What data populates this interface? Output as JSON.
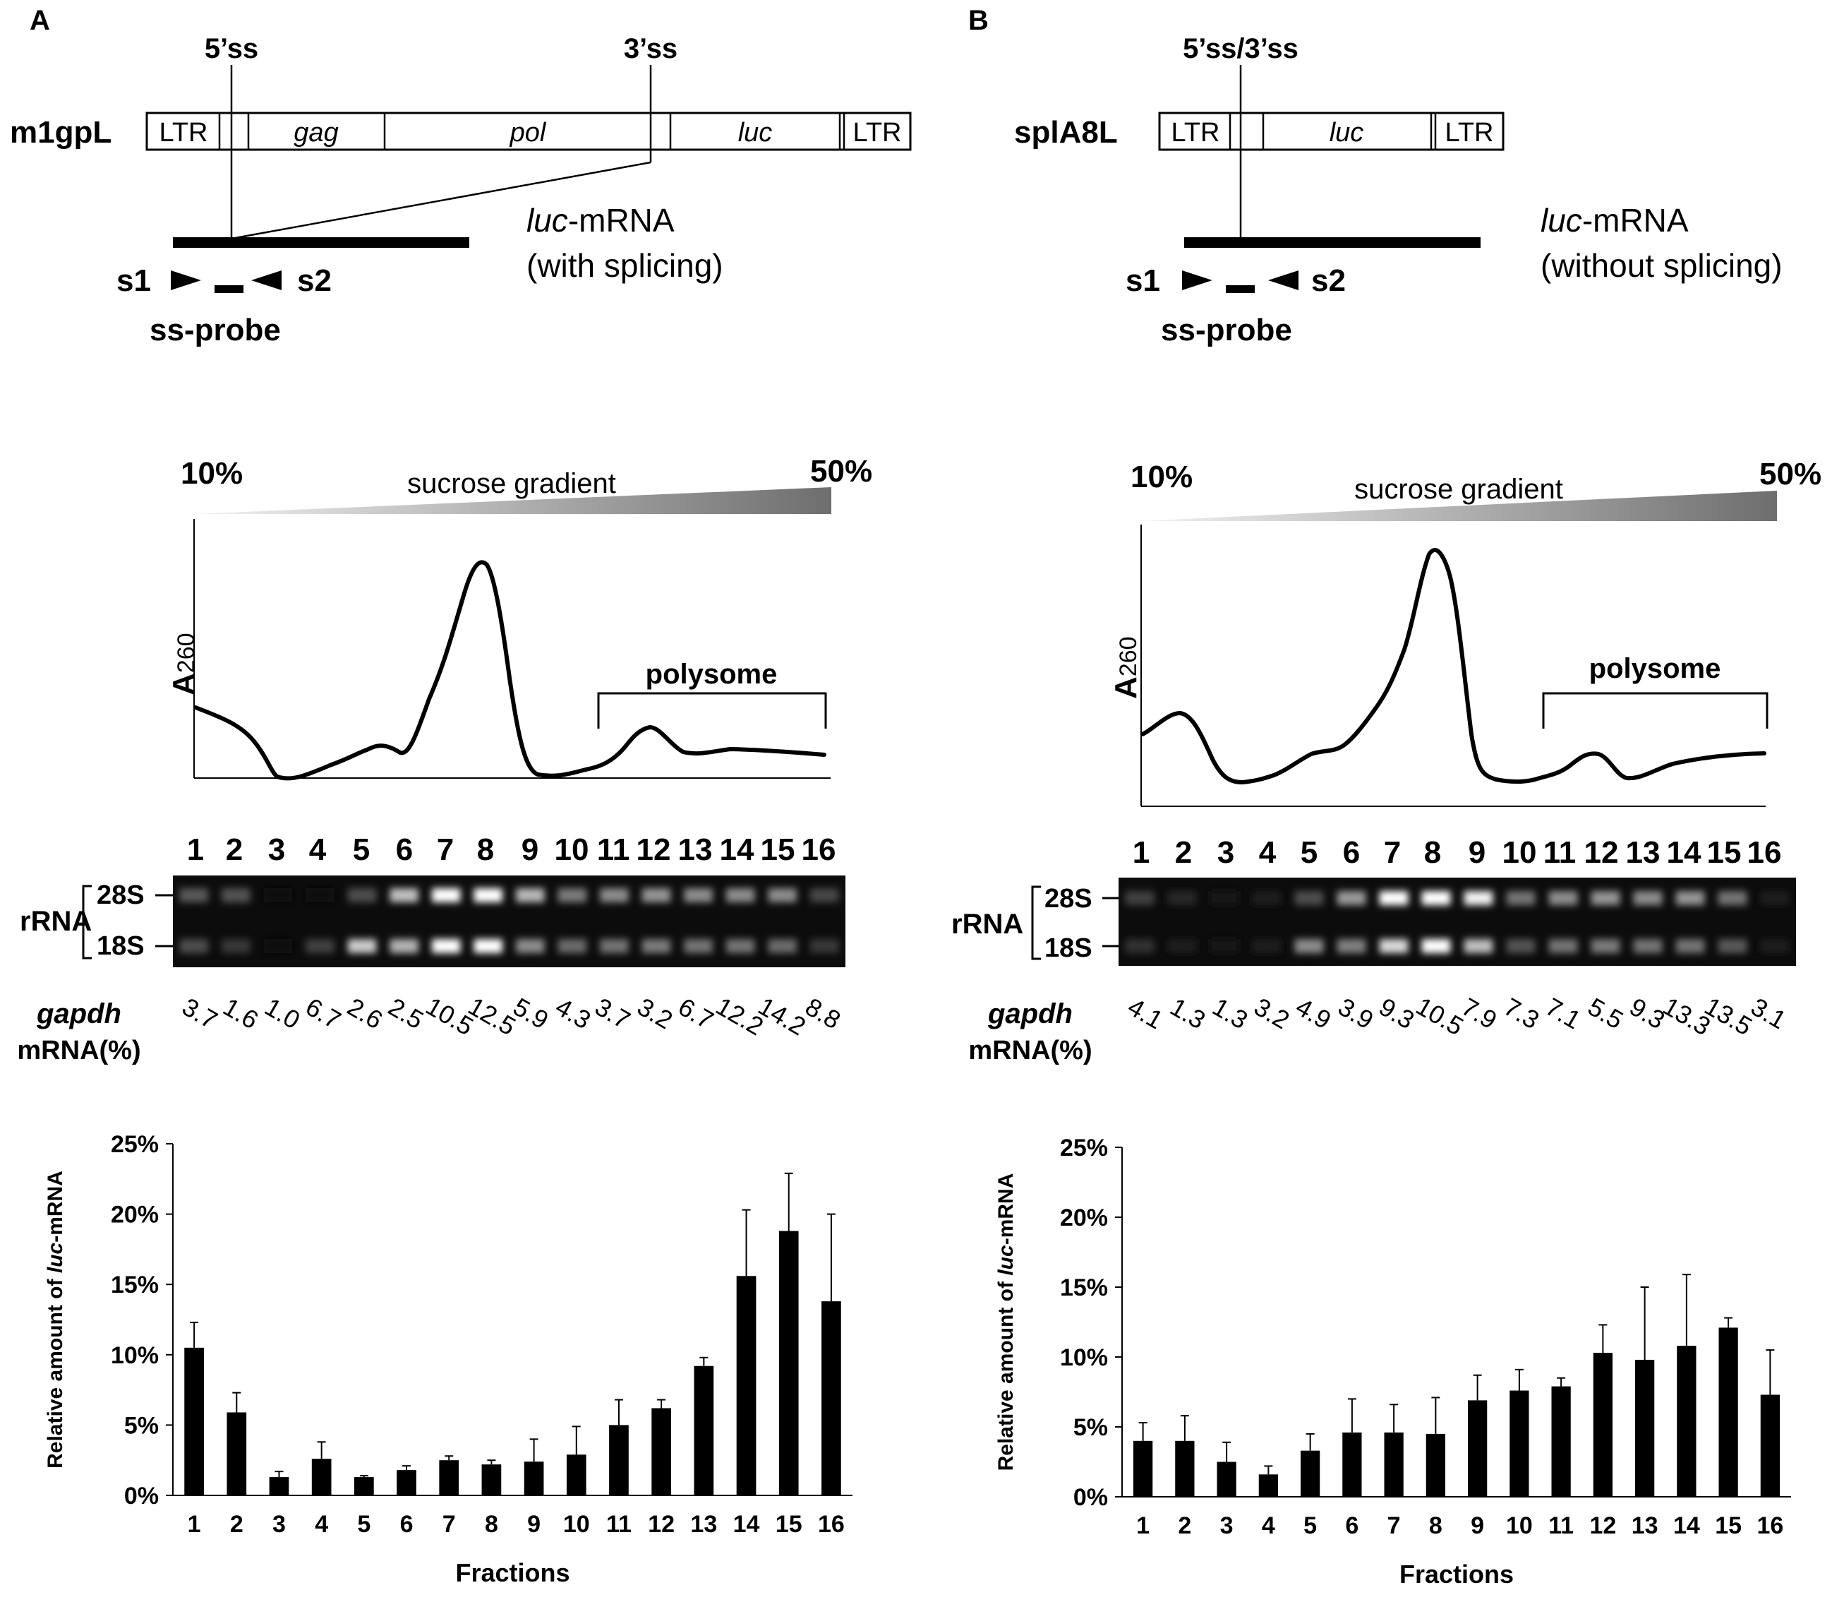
{
  "panels": [
    {
      "letter": "A",
      "construct": "m1gpL",
      "splice_top_labels": [
        "5’ss",
        "3’ss"
      ],
      "map_segments": [
        "LTR",
        "",
        "gag",
        "pol",
        "luc",
        "LTR"
      ],
      "mrna_label_italic": "luc",
      "mrna_label_rest": "-mRNA",
      "mrna_note": "(with splicing)",
      "primer_left": "s1",
      "primer_right": "s2",
      "probe_label": "ss-probe",
      "gradient": {
        "low": "10%",
        "high": "50%",
        "label": "sucrose gradient"
      },
      "profile": {
        "ylabel": "A",
        "ylabel_sub": "260",
        "bracket_label": "polysome"
      },
      "gel": {
        "row_label": "rRNA",
        "bands": [
          "28S",
          "18S"
        ]
      },
      "gapdh": {
        "label_italic": "gapdh",
        "label_rest": "mRNA(%)",
        "values": [
          "3.7",
          "1.6",
          "1.0",
          "6.7",
          "2.6",
          "2.5",
          "10.5",
          "12.5",
          "5.9",
          "4.3",
          "3.7",
          "3.2",
          "6.7",
          "12.2",
          "14.2",
          "8.8"
        ]
      },
      "lanes": [
        "1",
        "2",
        "3",
        "4",
        "5",
        "6",
        "7",
        "8",
        "9",
        "10",
        "11",
        "12",
        "13",
        "14",
        "15",
        "16"
      ]
    },
    {
      "letter": "B",
      "construct": "splA8L",
      "splice_top_labels": [
        "5’ss/3’ss"
      ],
      "map_segments": [
        "LTR",
        "",
        "luc",
        "LTR"
      ],
      "mrna_label_italic": "luc",
      "mrna_label_rest": "-mRNA",
      "mrna_note": "(without splicing)",
      "primer_left": "s1",
      "primer_right": "s2",
      "probe_label": "ss-probe",
      "gradient": {
        "low": "10%",
        "high": "50%",
        "label": "sucrose gradient"
      },
      "profile": {
        "ylabel": "A",
        "ylabel_sub": "260",
        "bracket_label": "polysome"
      },
      "gel": {
        "row_label": "rRNA",
        "bands": [
          "28S",
          "18S"
        ]
      },
      "gapdh": {
        "label_italic": "gapdh",
        "label_rest": "mRNA(%)",
        "values": [
          "4.1",
          "1.3",
          "1.3",
          "3.2",
          "4.9",
          "3.9",
          "9.3",
          "10.5",
          "7.9",
          "7.3",
          "7.1",
          "5.5",
          "9.3",
          "13.3",
          "13.5",
          "3.1"
        ]
      },
      "lanes": [
        "1",
        "2",
        "3",
        "4",
        "5",
        "6",
        "7",
        "8",
        "9",
        "10",
        "11",
        "12",
        "13",
        "14",
        "15",
        "16"
      ]
    }
  ],
  "chart_data": [
    {
      "type": "bar",
      "panel": "A",
      "title": "",
      "categories": [
        "1",
        "2",
        "3",
        "4",
        "5",
        "6",
        "7",
        "8",
        "9",
        "10",
        "11",
        "12",
        "13",
        "14",
        "15",
        "16"
      ],
      "values": [
        10.5,
        5.9,
        1.3,
        2.6,
        1.3,
        1.8,
        2.5,
        2.2,
        2.4,
        2.9,
        5.0,
        6.2,
        9.2,
        15.6,
        18.8,
        13.8
      ],
      "errors": [
        1.8,
        1.4,
        0.4,
        1.2,
        0.1,
        0.3,
        0.3,
        0.3,
        1.6,
        2.0,
        1.8,
        0.6,
        0.6,
        4.7,
        4.1,
        6.2
      ],
      "xlabel": "Fractions",
      "ylabel_pre": "Relative amount of ",
      "ylabel_italic": "luc",
      "ylabel_post": "-mRNA",
      "ylim": [
        0,
        25
      ],
      "yticks": [
        "0%",
        "5%",
        "10%",
        "15%",
        "20%",
        "25%"
      ]
    },
    {
      "type": "bar",
      "panel": "B",
      "title": "",
      "categories": [
        "1",
        "2",
        "3",
        "4",
        "5",
        "6",
        "7",
        "8",
        "9",
        "10",
        "11",
        "12",
        "13",
        "14",
        "15",
        "16"
      ],
      "values": [
        4.0,
        4.0,
        2.5,
        1.6,
        3.3,
        4.6,
        4.6,
        4.5,
        6.9,
        7.6,
        7.9,
        10.3,
        9.8,
        10.8,
        12.1,
        7.3
      ],
      "errors": [
        1.3,
        1.8,
        1.4,
        0.6,
        1.2,
        2.4,
        2.0,
        2.6,
        1.8,
        1.5,
        0.6,
        2.0,
        5.2,
        5.1,
        0.7,
        3.2
      ],
      "xlabel": "Fractions",
      "ylabel_pre": "Relative amount of ",
      "ylabel_italic": "luc",
      "ylabel_post": "-mRNA",
      "ylim": [
        0,
        25
      ],
      "yticks": [
        "0%",
        "5%",
        "10%",
        "15%",
        "20%",
        "25%"
      ]
    }
  ]
}
